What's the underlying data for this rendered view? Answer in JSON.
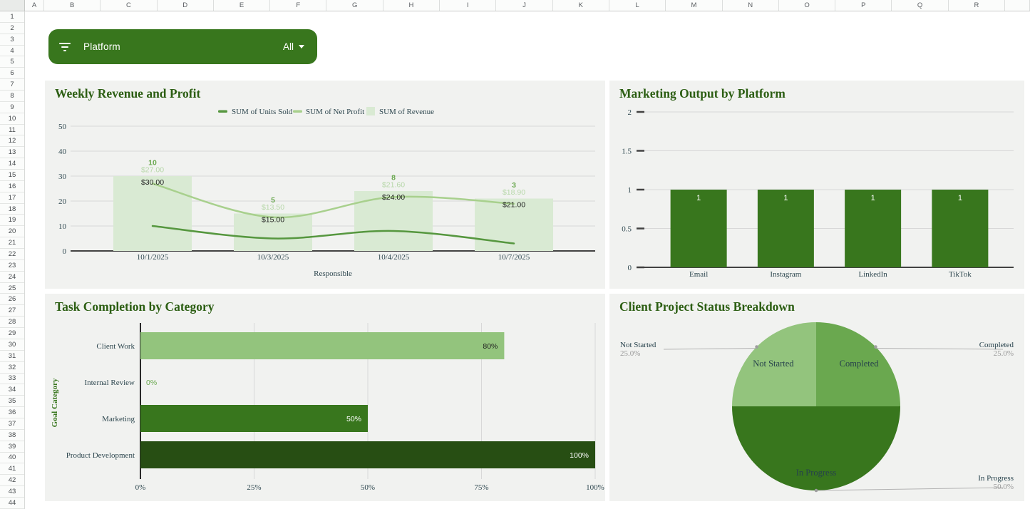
{
  "spreadsheet": {
    "columns": [
      "A",
      "B",
      "C",
      "D",
      "E",
      "F",
      "G",
      "H",
      "I",
      "J",
      "K",
      "L",
      "M",
      "N",
      "O",
      "P",
      "Q",
      "R"
    ],
    "row_count": 44
  },
  "filter": {
    "label": "Platform",
    "value": "All"
  },
  "colors": {
    "pill_green": "#38761d",
    "title_green": "#2c5e13",
    "slate": "#2f4850",
    "gridline": "#d8d8d8",
    "axis_dark": "#424242",
    "pct_gray": "#9a9a9a",
    "leader_gray": "#b3b3b3",
    "panel_bg": "#f1f2f0"
  },
  "chart_data": [
    {
      "id": "weekly-revenue-profit",
      "type": "combo",
      "title": "Weekly Revenue and Profit",
      "xlabel": "Responsible",
      "categories": [
        "10/1/2025",
        "10/3/2025",
        "10/4/2025",
        "10/7/2025"
      ],
      "yticks": [
        "0",
        "10",
        "20",
        "30",
        "40",
        "50"
      ],
      "ylim": [
        0,
        50
      ],
      "legend": [
        "SUM of Units Sold",
        "SUM of Net Profit",
        "SUM of Revenue"
      ],
      "series": [
        {
          "name": "SUM of Units Sold",
          "kind": "line",
          "color": "#56973f",
          "values": [
            10,
            5,
            8,
            3
          ],
          "labels": [
            "10",
            "5",
            "8",
            "3"
          ],
          "label_color": "#6aa84f"
        },
        {
          "name": "SUM of Net Profit",
          "kind": "line",
          "color": "#a8d08d",
          "values": [
            27,
            13.5,
            21.6,
            18.9
          ],
          "labels": [
            "$27.00",
            "$13.50",
            "$21.60",
            "$18.90"
          ],
          "label_color": "#b6d7a8"
        },
        {
          "name": "SUM of Revenue",
          "kind": "bar",
          "color": "#d9ead3",
          "values": [
            30,
            15,
            24,
            21
          ],
          "labels": [
            "$30.00",
            "$15.00",
            "$24.00",
            "$21.00"
          ],
          "label_color": "#1d1d1d"
        }
      ]
    },
    {
      "id": "marketing-output",
      "type": "bar",
      "title": "Marketing Output by Platform",
      "categories": [
        "Email",
        "Instagram",
        "LinkedIn",
        "TikTok"
      ],
      "values": [
        1,
        1,
        1,
        1
      ],
      "bar_labels": [
        "1",
        "1",
        "1",
        "1"
      ],
      "yticks": [
        "0",
        "0.5",
        "1",
        "1.5",
        "2"
      ],
      "ylim": [
        0,
        2
      ],
      "bar_color": "#38761d"
    },
    {
      "id": "task-completion",
      "type": "hbar",
      "title": "Task Completion by Category",
      "ylabel": "Goal Category",
      "categories": [
        "Client Work",
        "Internal Review",
        "Marketing",
        "Product Development"
      ],
      "values": [
        80,
        0,
        50,
        100
      ],
      "bar_labels": [
        "80%",
        "0%",
        "50%",
        "100%"
      ],
      "bar_colors": [
        "#93c47d",
        "#6aa84f",
        "#38761d",
        "#274e13"
      ],
      "label_modes": [
        "inside-dark",
        "outside-green",
        "inside-white",
        "inside-white"
      ],
      "xticks": [
        "0%",
        "25%",
        "50%",
        "75%",
        "100%"
      ],
      "xlim": [
        0,
        100
      ]
    },
    {
      "id": "client-project-status",
      "type": "pie",
      "title": "Client Project Status Breakdown",
      "slices": [
        {
          "label": "Completed",
          "pct": 25.0,
          "pct_label": "25.0%",
          "color": "#6aa84f"
        },
        {
          "label": "In Progress",
          "pct": 50.0,
          "pct_label": "50.0%",
          "color": "#38761d"
        },
        {
          "label": "Not Started",
          "pct": 25.0,
          "pct_label": "25.0%",
          "color": "#93c47d"
        }
      ]
    }
  ]
}
